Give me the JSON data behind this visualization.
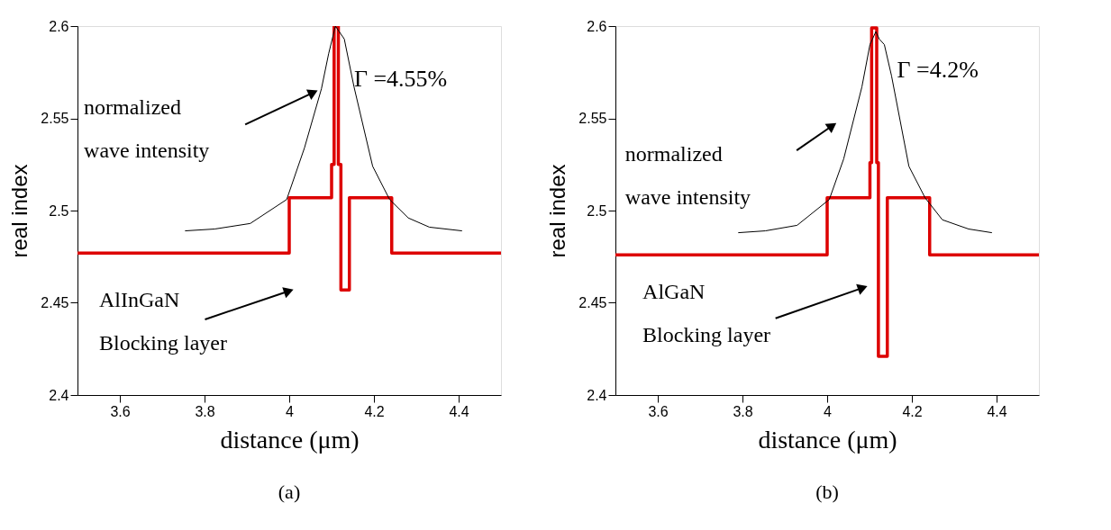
{
  "chart_data": [
    {
      "type": "line",
      "xlabel": "distance (μm)",
      "ylabel": "real index",
      "xlim": [
        3.5,
        4.5
      ],
      "ylim": [
        2.4,
        2.6
      ],
      "xticks": [
        3.6,
        3.8,
        4,
        4.2,
        4.4
      ],
      "yticks": [
        2.4,
        2.45,
        2.5,
        2.55,
        2.6
      ],
      "grid": false,
      "legend": false,
      "marker": "none",
      "line_style": "solid",
      "series": [
        {
          "color": "#dd0000",
          "x": [
            3.5,
            4.0,
            4.0,
            4.1,
            4.1,
            4.106,
            4.106,
            4.116,
            4.116,
            4.122,
            4.122,
            4.142,
            4.142,
            4.242,
            4.242,
            4.5
          ],
          "values": [
            2.477,
            2.477,
            2.507,
            2.507,
            2.525,
            2.525,
            2.6,
            2.6,
            2.525,
            2.525,
            2.457,
            2.457,
            2.507,
            2.507,
            2.477,
            2.477
          ]
        },
        {
          "color": "#000000",
          "x": [
            3.754,
            3.824,
            3.908,
            3.994,
            4.036,
            4.076,
            4.093,
            4.109,
            4.13,
            4.153,
            4.197,
            4.237,
            4.281,
            4.331,
            4.408
          ],
          "values": [
            2.489,
            2.49,
            2.493,
            2.506,
            2.534,
            2.566,
            2.585,
            2.6,
            2.593,
            2.567,
            2.524,
            2.506,
            2.496,
            2.491,
            2.489
          ]
        }
      ],
      "annotations": [
        "Γ =4.55%",
        "normalized wave intensity",
        "AlInGaN Blocking layer",
        "(a)"
      ]
    },
    {
      "type": "line",
      "xlabel": "distance (μm)",
      "ylabel": "real index",
      "xlim": [
        3.5,
        4.5
      ],
      "ylim": [
        2.4,
        2.6
      ],
      "xticks": [
        3.6,
        3.8,
        4,
        4.2,
        4.4
      ],
      "yticks": [
        2.4,
        2.45,
        2.5,
        2.55,
        2.6
      ],
      "grid": false,
      "legend": false,
      "marker": "none",
      "line_style": "solid",
      "series": [
        {
          "color": "#dd0000",
          "x": [
            3.5,
            4.0,
            4.0,
            4.101,
            4.101,
            4.105,
            4.105,
            4.117,
            4.117,
            4.121,
            4.121,
            4.142,
            4.142,
            4.242,
            4.242,
            4.5
          ],
          "values": [
            2.476,
            2.476,
            2.507,
            2.507,
            2.526,
            2.526,
            2.599,
            2.599,
            2.526,
            2.526,
            2.421,
            2.421,
            2.507,
            2.507,
            2.476,
            2.476
          ]
        },
        {
          "color": "#000000",
          "x": [
            3.79,
            3.854,
            3.929,
            4.005,
            4.039,
            4.082,
            4.101,
            4.115,
            4.123,
            4.135,
            4.152,
            4.193,
            4.231,
            4.272,
            4.334,
            4.389
          ],
          "values": [
            2.488,
            2.489,
            2.492,
            2.506,
            2.528,
            2.567,
            2.59,
            2.597,
            2.593,
            2.59,
            2.573,
            2.524,
            2.507,
            2.495,
            2.49,
            2.488
          ]
        }
      ],
      "annotations": [
        "Γ =4.2%",
        "normalized wave intensity",
        "AlGaN Blocking layer",
        "(b)"
      ]
    }
  ]
}
